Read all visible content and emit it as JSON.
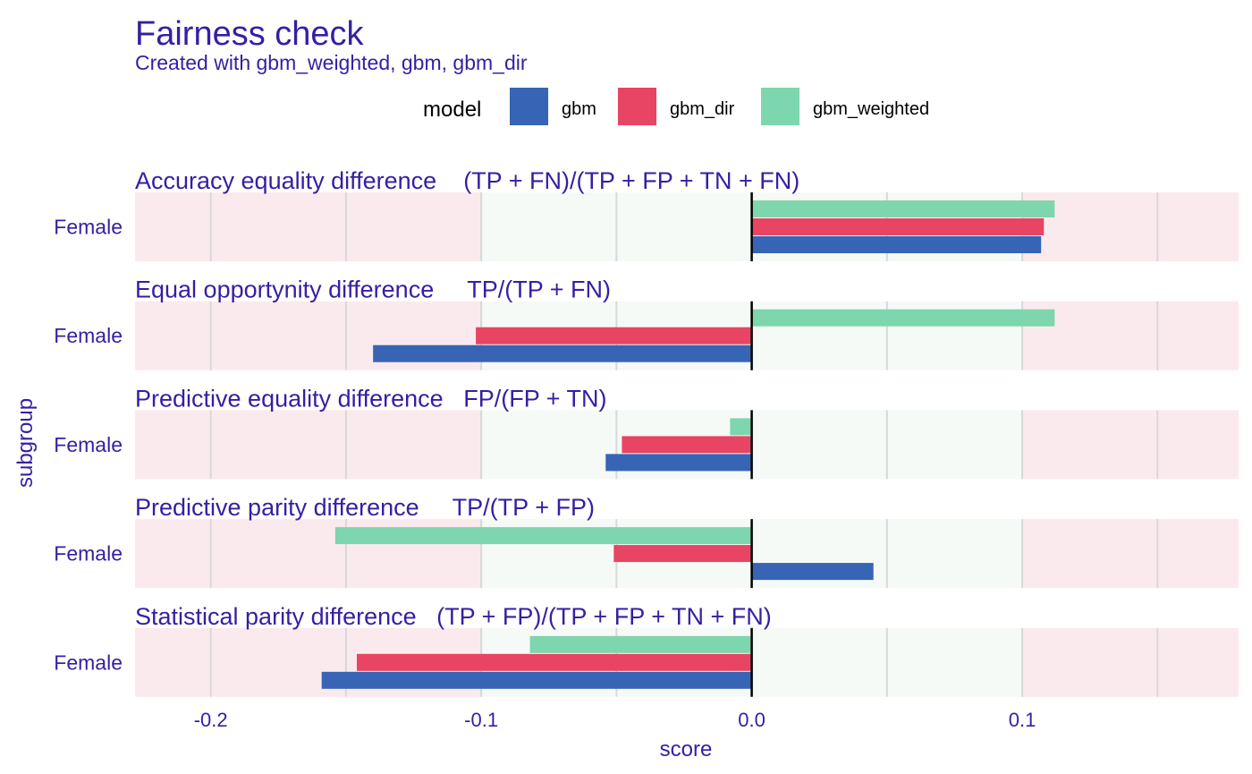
{
  "chart_data": {
    "type": "bar",
    "title": "Fairness check",
    "subtitle": "Created with gbm_weighted, gbm, gbm_dir",
    "xlabel": "score",
    "ylabel": "subgroup",
    "xlim": [
      -0.228,
      0.18
    ],
    "x_ticks": [
      "-0.2",
      "-0.1",
      "0.0",
      "0.1"
    ],
    "x_tick_values": [
      -0.2,
      -0.1,
      0.0,
      0.1
    ],
    "fair_band": [
      -0.1,
      0.1
    ],
    "grid": true,
    "legend": {
      "title": "model",
      "placement": "top",
      "items": [
        "gbm",
        "gbm_dir",
        "gbm_weighted"
      ]
    },
    "colors": {
      "gbm": "#3764b4",
      "gbm_dir": "#e84463",
      "gbm_weighted": "#7dd6ad",
      "text": "#371ea3",
      "unfair_bg": "#fbeaed",
      "fair_bg": "#f6faf6",
      "grid": "#d8d8d8",
      "zero_line": "#000000"
    },
    "panels": [
      {
        "label": "Accuracy equality difference    (TP + FN)/(TP + FP + TN + FN)",
        "subgroup": "Female",
        "values": {
          "gbm_weighted": 0.112,
          "gbm_dir": 0.108,
          "gbm": 0.107
        }
      },
      {
        "label": "Equal opportynity difference     TP/(TP + FN)",
        "subgroup": "Female",
        "values": {
          "gbm_weighted": 0.112,
          "gbm_dir": -0.102,
          "gbm": -0.14
        }
      },
      {
        "label": "Predictive equality difference   FP/(FP + TN)",
        "subgroup": "Female",
        "values": {
          "gbm_weighted": -0.008,
          "gbm_dir": -0.048,
          "gbm": -0.054
        }
      },
      {
        "label": "Predictive parity difference     TP/(TP + FP)",
        "subgroup": "Female",
        "values": {
          "gbm_weighted": -0.154,
          "gbm_dir": -0.051,
          "gbm": 0.045
        }
      },
      {
        "label": "Statistical parity difference   (TP + FP)/(TP + FP + TN + FN)",
        "subgroup": "Female",
        "values": {
          "gbm_weighted": -0.082,
          "gbm_dir": -0.146,
          "gbm": -0.159
        }
      }
    ]
  }
}
